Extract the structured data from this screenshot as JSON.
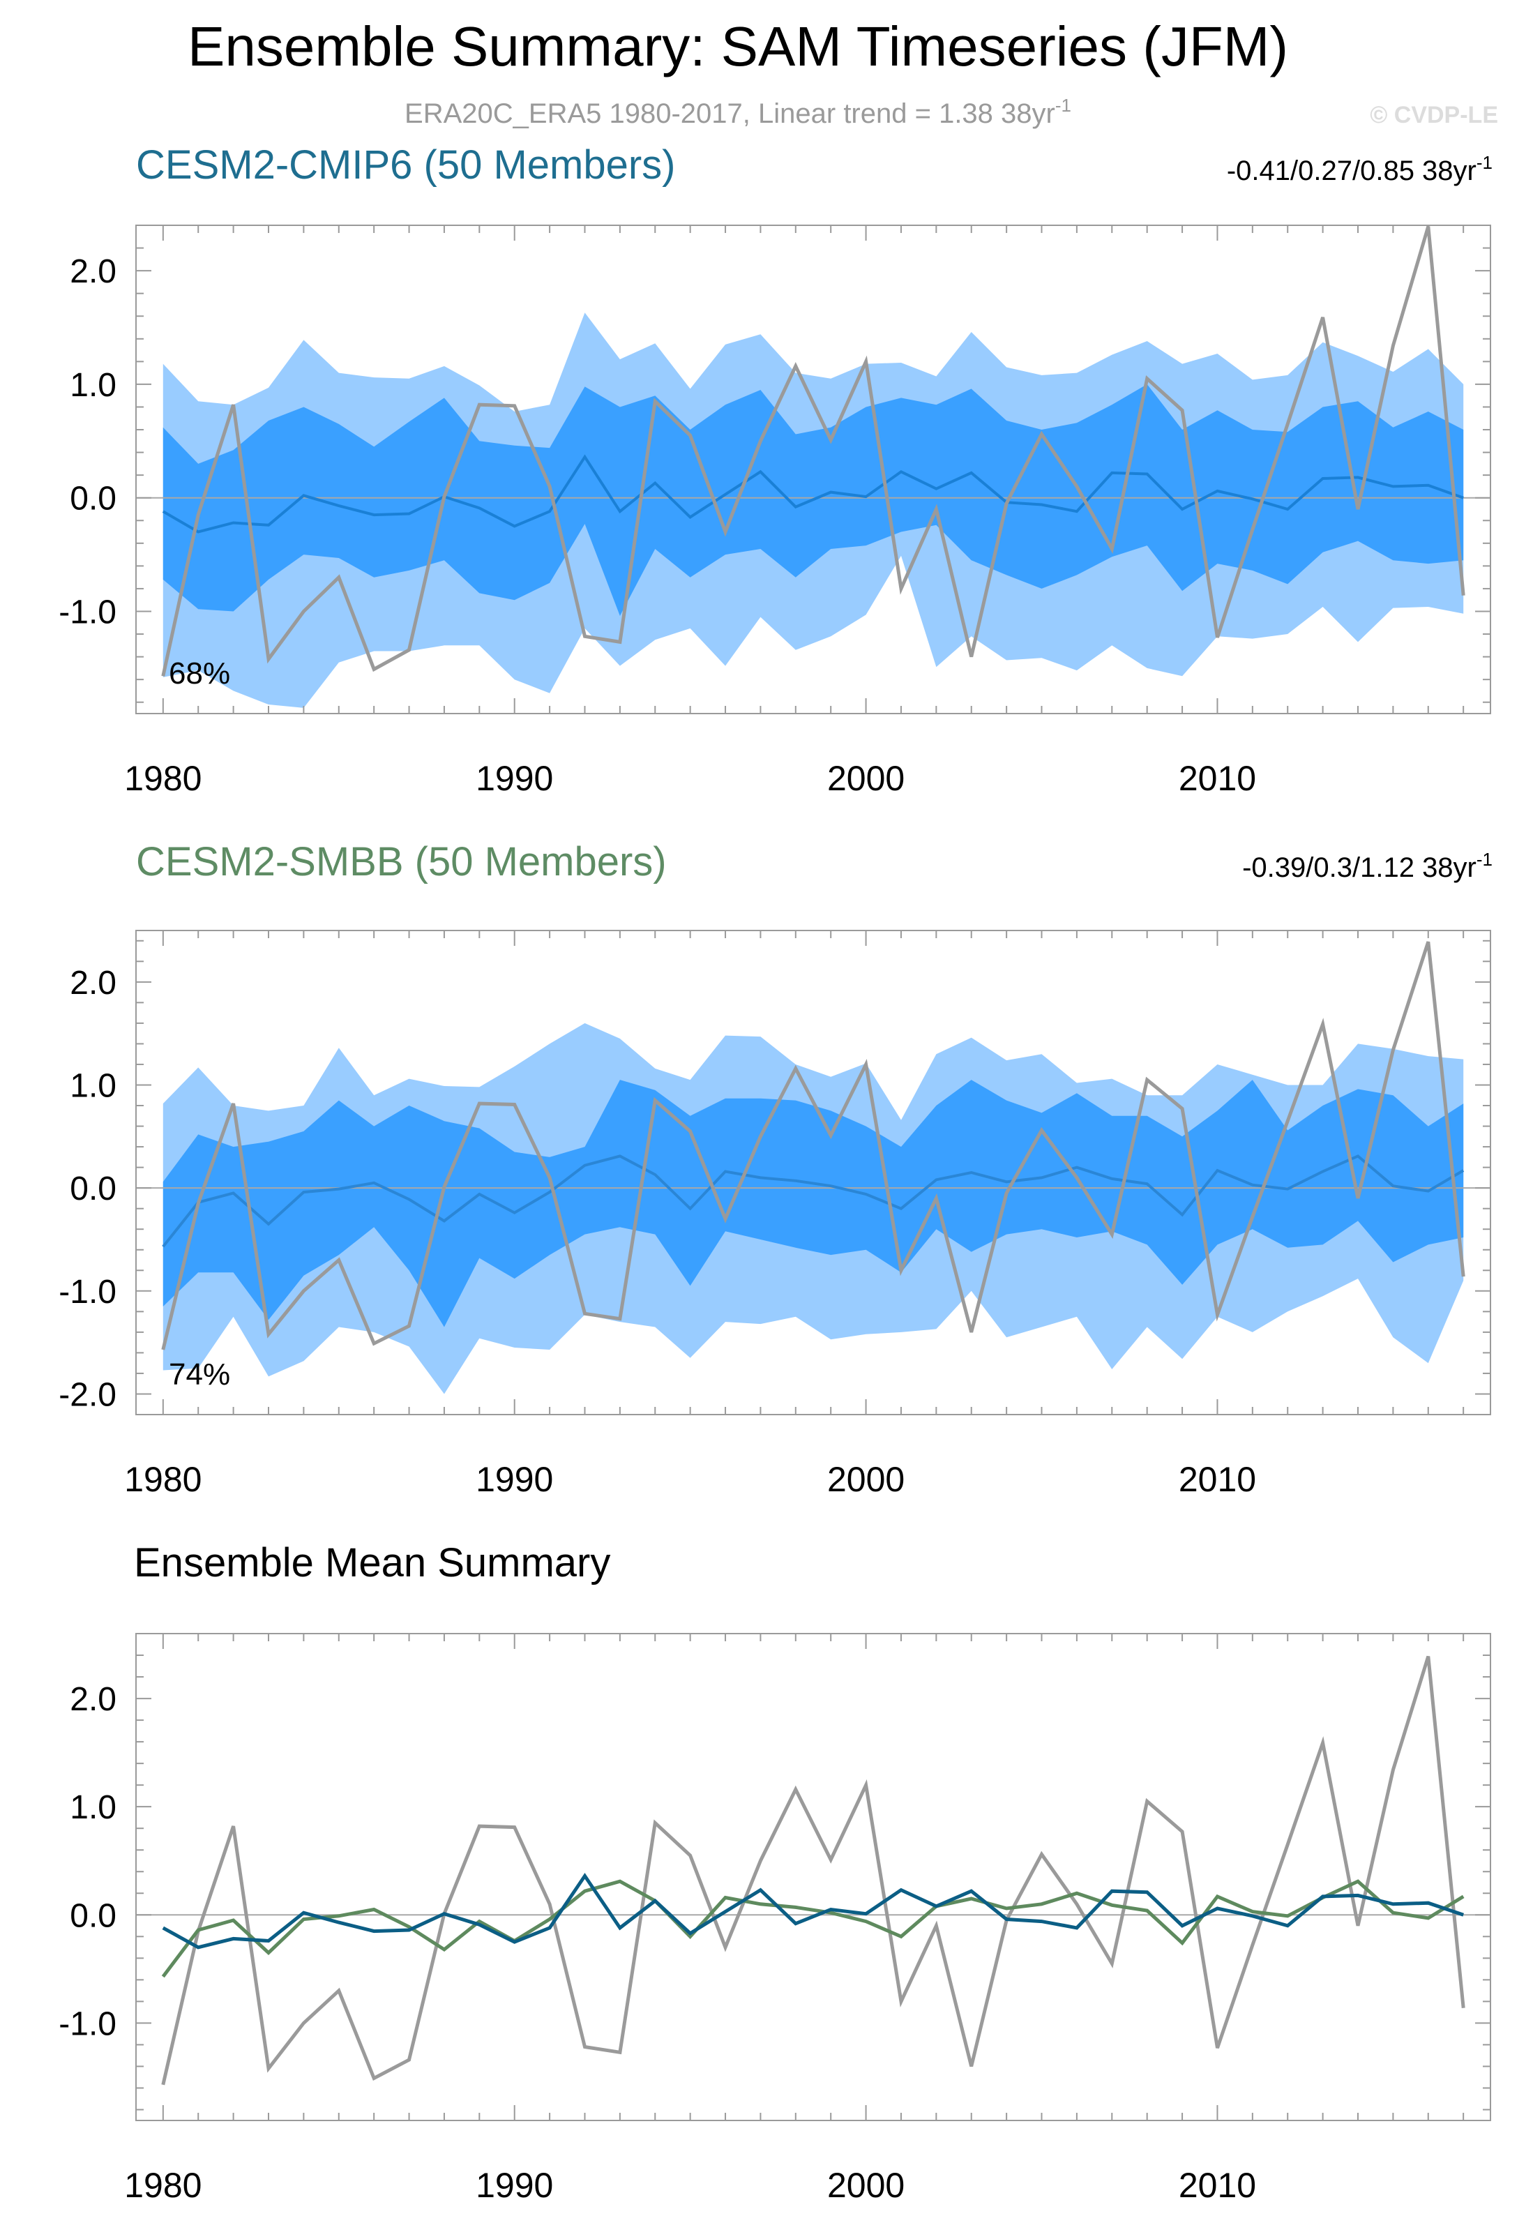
{
  "header": {
    "title": "Ensemble Summary: SAM Timeseries (JFM)",
    "subtitle_main": "ERA20C_ERA5 1980-2017, Linear trend = 1.38 38yr",
    "subtitle_exp": "-1",
    "copyright": "© CVDP-LE"
  },
  "colors": {
    "obs": "#9a9a9a",
    "band_outer": "#99ccff",
    "band_inner": "#3aa0ff",
    "cmip6_mean": "#1a80d6",
    "smbb_mean": "#2a86d6",
    "cmip6_line": "#0b5e85",
    "smbb_line": "#5e8a5e",
    "cmip6_title": "#1e6e90",
    "smbb_title": "#5e8c64",
    "zero_line": "#a8a8a8",
    "axis": "#9a9a9a"
  },
  "chart_data": [
    {
      "type": "area",
      "title": "CESM2-CMIP6 (50 Members)",
      "trend_label": "-0.41/0.27/0.85 38yr",
      "trend_exp": "-1",
      "pct_label": "68%",
      "x": [
        1980,
        1981,
        1982,
        1983,
        1984,
        1985,
        1986,
        1987,
        1988,
        1989,
        1990,
        1991,
        1992,
        1993,
        1994,
        1995,
        1996,
        1997,
        1998,
        1999,
        2000,
        2001,
        2002,
        2003,
        2004,
        2005,
        2006,
        2007,
        2008,
        2009,
        2010,
        2011,
        2012,
        2013,
        2014,
        2015,
        2016,
        2017
      ],
      "xticks": [
        1980,
        1990,
        2000,
        2010
      ],
      "ylim": [
        -1.9,
        2.4
      ],
      "yticks": [
        -1.0,
        0.0,
        1.0,
        2.0
      ],
      "ytick_labels": [
        "-1.0",
        "0.0",
        "1.0",
        "2.0"
      ],
      "series": [
        {
          "name": "band_outer_upper",
          "values": [
            1.18,
            0.85,
            0.82,
            0.97,
            1.39,
            1.1,
            1.06,
            1.05,
            1.16,
            0.99,
            0.76,
            0.82,
            1.63,
            1.22,
            1.36,
            0.96,
            1.35,
            1.44,
            1.1,
            1.05,
            1.18,
            1.19,
            1.07,
            1.46,
            1.15,
            1.08,
            1.1,
            1.26,
            1.38,
            1.18,
            1.27,
            1.04,
            1.08,
            1.37,
            1.25,
            1.11,
            1.31,
            1.0
          ]
        },
        {
          "name": "band_outer_lower",
          "values": [
            -1.58,
            -1.52,
            -1.7,
            -1.82,
            -1.85,
            -1.45,
            -1.35,
            -1.35,
            -1.3,
            -1.3,
            -1.6,
            -1.72,
            -1.15,
            -1.48,
            -1.25,
            -1.15,
            -1.48,
            -1.05,
            -1.34,
            -1.22,
            -1.03,
            -0.51,
            -1.49,
            -1.22,
            -1.43,
            -1.41,
            -1.52,
            -1.3,
            -1.5,
            -1.57,
            -1.22,
            -1.24,
            -1.2,
            -0.96,
            -1.27,
            -0.97,
            -0.96,
            -1.02
          ]
        },
        {
          "name": "band_inner_upper",
          "values": [
            0.62,
            0.3,
            0.42,
            0.68,
            0.8,
            0.65,
            0.45,
            0.67,
            0.88,
            0.5,
            0.46,
            0.44,
            0.98,
            0.8,
            0.9,
            0.6,
            0.82,
            0.95,
            0.56,
            0.62,
            0.8,
            0.88,
            0.82,
            0.96,
            0.68,
            0.6,
            0.66,
            0.82,
            1.0,
            0.6,
            0.77,
            0.6,
            0.58,
            0.8,
            0.85,
            0.62,
            0.76,
            0.6
          ]
        },
        {
          "name": "band_inner_lower",
          "values": [
            -0.72,
            -0.98,
            -1.0,
            -0.72,
            -0.5,
            -0.53,
            -0.7,
            -0.64,
            -0.55,
            -0.84,
            -0.9,
            -0.75,
            -0.23,
            -1.04,
            -0.45,
            -0.7,
            -0.5,
            -0.45,
            -0.7,
            -0.45,
            -0.42,
            -0.3,
            -0.24,
            -0.55,
            -0.68,
            -0.8,
            -0.68,
            -0.52,
            -0.42,
            -0.82,
            -0.58,
            -0.64,
            -0.76,
            -0.48,
            -0.38,
            -0.55,
            -0.58,
            -0.55
          ]
        },
        {
          "name": "ensemble_mean",
          "values": [
            -0.12,
            -0.3,
            -0.22,
            -0.24,
            0.02,
            -0.07,
            -0.15,
            -0.14,
            0.01,
            -0.09,
            -0.25,
            -0.12,
            0.36,
            -0.12,
            0.13,
            -0.17,
            0.03,
            0.23,
            -0.08,
            0.05,
            0.01,
            0.23,
            0.08,
            0.22,
            -0.04,
            -0.06,
            -0.12,
            0.22,
            0.21,
            -0.1,
            0.06,
            -0.01,
            -0.1,
            0.17,
            0.18,
            0.1,
            0.11,
            0.0
          ]
        },
        {
          "name": "ERA20C_ERA5",
          "values": [
            -1.57,
            -0.15,
            0.82,
            -1.42,
            -1.0,
            -0.7,
            -1.51,
            -1.34,
            0.01,
            0.82,
            0.81,
            0.1,
            -1.22,
            -1.27,
            0.85,
            0.55,
            -0.3,
            0.5,
            1.16,
            0.51,
            1.2,
            -0.8,
            -0.1,
            -1.4,
            -0.05,
            0.56,
            0.1,
            -0.45,
            1.05,
            0.77,
            -1.23,
            -0.28,
            0.65,
            1.59,
            -0.1,
            1.34,
            2.39,
            -0.86
          ]
        }
      ]
    },
    {
      "type": "area",
      "title": "CESM2-SMBB (50 Members)",
      "trend_label": "-0.39/0.3/1.12 38yr",
      "trend_exp": "-1",
      "pct_label": "74%",
      "x": [
        1980,
        1981,
        1982,
        1983,
        1984,
        1985,
        1986,
        1987,
        1988,
        1989,
        1990,
        1991,
        1992,
        1993,
        1994,
        1995,
        1996,
        1997,
        1998,
        1999,
        2000,
        2001,
        2002,
        2003,
        2004,
        2005,
        2006,
        2007,
        2008,
        2009,
        2010,
        2011,
        2012,
        2013,
        2014,
        2015,
        2016,
        2017
      ],
      "xticks": [
        1980,
        1990,
        2000,
        2010
      ],
      "ylim": [
        -2.2,
        2.5
      ],
      "yticks": [
        -2.0,
        -1.0,
        0.0,
        1.0,
        2.0
      ],
      "ytick_labels": [
        "-2.0",
        "-1.0",
        "0.0",
        "1.0",
        "2.0"
      ],
      "series": [
        {
          "name": "band_outer_upper",
          "values": [
            0.82,
            1.17,
            0.8,
            0.75,
            0.8,
            1.36,
            0.9,
            1.06,
            0.99,
            0.98,
            1.18,
            1.4,
            1.6,
            1.45,
            1.16,
            1.05,
            1.48,
            1.47,
            1.2,
            1.08,
            1.21,
            0.66,
            1.3,
            1.46,
            1.24,
            1.3,
            1.02,
            1.06,
            0.9,
            0.9,
            1.2,
            1.1,
            1.0,
            1.0,
            1.4,
            1.35,
            1.28,
            1.25
          ]
        },
        {
          "name": "band_outer_lower",
          "values": [
            -1.77,
            -1.75,
            -1.25,
            -1.83,
            -1.68,
            -1.35,
            -1.4,
            -1.54,
            -2.0,
            -1.46,
            -1.55,
            -1.57,
            -1.23,
            -1.3,
            -1.35,
            -1.65,
            -1.3,
            -1.32,
            -1.25,
            -1.47,
            -1.42,
            -1.4,
            -1.37,
            -1.0,
            -1.45,
            -1.35,
            -1.25,
            -1.76,
            -1.35,
            -1.66,
            -1.25,
            -1.4,
            -1.2,
            -1.05,
            -0.88,
            -1.45,
            -1.7,
            -0.9
          ]
        },
        {
          "name": "band_inner_upper",
          "values": [
            0.06,
            0.52,
            0.4,
            0.45,
            0.55,
            0.85,
            0.6,
            0.8,
            0.65,
            0.58,
            0.35,
            0.3,
            0.4,
            1.05,
            0.95,
            0.7,
            0.87,
            0.87,
            0.85,
            0.75,
            0.6,
            0.4,
            0.8,
            1.05,
            0.85,
            0.73,
            0.92,
            0.7,
            0.7,
            0.5,
            0.75,
            1.05,
            0.56,
            0.8,
            0.96,
            0.9,
            0.6,
            0.82
          ]
        },
        {
          "name": "band_inner_lower",
          "values": [
            -1.15,
            -0.82,
            -0.82,
            -1.28,
            -0.85,
            -0.65,
            -0.38,
            -0.8,
            -1.35,
            -0.68,
            -0.88,
            -0.65,
            -0.45,
            -0.38,
            -0.45,
            -0.95,
            -0.42,
            -0.5,
            -0.58,
            -0.65,
            -0.6,
            -0.82,
            -0.4,
            -0.62,
            -0.45,
            -0.4,
            -0.48,
            -0.42,
            -0.55,
            -0.94,
            -0.55,
            -0.4,
            -0.58,
            -0.55,
            -0.32,
            -0.72,
            -0.55,
            -0.48
          ]
        },
        {
          "name": "ensemble_mean",
          "values": [
            -0.57,
            -0.14,
            -0.05,
            -0.35,
            -0.04,
            -0.01,
            0.05,
            -0.11,
            -0.32,
            -0.06,
            -0.24,
            -0.04,
            0.22,
            0.31,
            0.13,
            -0.2,
            0.16,
            0.1,
            0.07,
            0.02,
            -0.06,
            -0.2,
            0.08,
            0.15,
            0.06,
            0.1,
            0.2,
            0.09,
            0.04,
            -0.26,
            0.17,
            0.03,
            -0.01,
            0.16,
            0.31,
            0.02,
            -0.03,
            0.17
          ]
        },
        {
          "name": "ERA20C_ERA5",
          "values": [
            -1.57,
            -0.15,
            0.82,
            -1.42,
            -1.0,
            -0.7,
            -1.51,
            -1.34,
            0.01,
            0.82,
            0.81,
            0.1,
            -1.22,
            -1.27,
            0.85,
            0.55,
            -0.3,
            0.5,
            1.16,
            0.51,
            1.2,
            -0.8,
            -0.1,
            -1.4,
            -0.05,
            0.56,
            0.1,
            -0.45,
            1.05,
            0.77,
            -1.23,
            -0.28,
            0.65,
            1.59,
            -0.1,
            1.34,
            2.39,
            -0.86
          ]
        }
      ]
    },
    {
      "type": "line",
      "title": "Ensemble Mean Summary",
      "x": [
        1980,
        1981,
        1982,
        1983,
        1984,
        1985,
        1986,
        1987,
        1988,
        1989,
        1990,
        1991,
        1992,
        1993,
        1994,
        1995,
        1996,
        1997,
        1998,
        1999,
        2000,
        2001,
        2002,
        2003,
        2004,
        2005,
        2006,
        2007,
        2008,
        2009,
        2010,
        2011,
        2012,
        2013,
        2014,
        2015,
        2016,
        2017
      ],
      "xticks": [
        1980,
        1990,
        2000,
        2010
      ],
      "ylim": [
        -1.9,
        2.6
      ],
      "yticks": [
        -1.0,
        0.0,
        1.0,
        2.0
      ],
      "ytick_labels": [
        "-1.0",
        "0.0",
        "1.0",
        "2.0"
      ],
      "series": [
        {
          "name": "ERA20C_ERA5",
          "values": [
            -1.57,
            -0.15,
            0.82,
            -1.42,
            -1.0,
            -0.7,
            -1.51,
            -1.34,
            0.01,
            0.82,
            0.81,
            0.1,
            -1.22,
            -1.27,
            0.85,
            0.55,
            -0.3,
            0.5,
            1.16,
            0.51,
            1.2,
            -0.8,
            -0.1,
            -1.4,
            -0.05,
            0.56,
            0.1,
            -0.45,
            1.05,
            0.77,
            -1.23,
            -0.28,
            0.65,
            1.59,
            -0.1,
            1.34,
            2.39,
            -0.86
          ]
        },
        {
          "name": "CESM2-SMBB",
          "values": [
            -0.57,
            -0.14,
            -0.05,
            -0.35,
            -0.04,
            -0.01,
            0.05,
            -0.11,
            -0.32,
            -0.06,
            -0.24,
            -0.04,
            0.22,
            0.31,
            0.13,
            -0.2,
            0.16,
            0.1,
            0.07,
            0.02,
            -0.06,
            -0.2,
            0.08,
            0.15,
            0.06,
            0.1,
            0.2,
            0.09,
            0.04,
            -0.26,
            0.17,
            0.03,
            -0.01,
            0.16,
            0.31,
            0.02,
            -0.03,
            0.17
          ]
        },
        {
          "name": "CESM2-CMIP6",
          "values": [
            -0.12,
            -0.3,
            -0.22,
            -0.24,
            0.02,
            -0.07,
            -0.15,
            -0.14,
            0.01,
            -0.09,
            -0.25,
            -0.12,
            0.36,
            -0.12,
            0.13,
            -0.17,
            0.03,
            0.23,
            -0.08,
            0.05,
            0.01,
            0.23,
            0.08,
            0.22,
            -0.04,
            -0.06,
            -0.12,
            0.22,
            0.21,
            -0.1,
            0.06,
            -0.01,
            -0.1,
            0.17,
            0.18,
            0.1,
            0.11,
            0.0
          ]
        }
      ]
    }
  ]
}
